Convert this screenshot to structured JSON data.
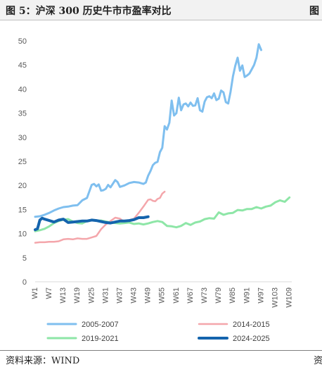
{
  "header": {
    "title": "图 5：沪深 300 历史牛市市盈率对比",
    "edge_glyph": "图"
  },
  "footer": {
    "source": "资料来源：WIND",
    "edge_glyph": "资"
  },
  "chart_data": {
    "type": "line",
    "title": "",
    "xlabel": "",
    "ylabel": "",
    "ylim": [
      0,
      50
    ],
    "yticks": [
      0,
      5,
      10,
      15,
      20,
      25,
      30,
      35,
      40,
      45,
      50
    ],
    "xlim": [
      1,
      110
    ],
    "xtick_values": [
      1,
      7,
      13,
      19,
      25,
      31,
      37,
      43,
      49,
      55,
      61,
      67,
      73,
      79,
      85,
      91,
      97,
      103,
      109
    ],
    "xtick_labels": [
      "W1",
      "W7",
      "W13",
      "W19",
      "W25",
      "W31",
      "W37",
      "W43",
      "W49",
      "W55",
      "W61",
      "W67",
      "W73",
      "W79",
      "W85",
      "W91",
      "W97",
      "W103",
      "W109"
    ],
    "grid": false,
    "legend_position": "bottom",
    "series": [
      {
        "name": "2005-2007",
        "color": "#7fbfef",
        "width": 3,
        "x": [
          1,
          3,
          5,
          7,
          9,
          11,
          13,
          15,
          17,
          19,
          21,
          23,
          25,
          26,
          27,
          28,
          29,
          30,
          31,
          32,
          33,
          35,
          36,
          37,
          39,
          41,
          43,
          45,
          47,
          48,
          49,
          50,
          51,
          52,
          53,
          54,
          55,
          56,
          57,
          58,
          59,
          60,
          61,
          62,
          63,
          64,
          65,
          66,
          67,
          68,
          69,
          70,
          71,
          72,
          73,
          74,
          75,
          76,
          77,
          78,
          79,
          80,
          81,
          82,
          83,
          84,
          85,
          86,
          87,
          88,
          89,
          90,
          91,
          92,
          93,
          94,
          95,
          96,
          97
        ],
        "y": [
          13.5,
          13.6,
          13.9,
          14.3,
          14.8,
          15.2,
          15.5,
          15.6,
          15.8,
          15.9,
          16.9,
          17.4,
          20.1,
          20.3,
          19.8,
          20.2,
          18.9,
          19.0,
          19.3,
          20.1,
          19.6,
          21.1,
          20.7,
          19.7,
          20.0,
          20.5,
          20.7,
          20.6,
          20.3,
          20.6,
          22.0,
          23.0,
          24.2,
          24.7,
          24.9,
          26.9,
          27.8,
          32.3,
          31.6,
          33.0,
          37.6,
          34.5,
          35.0,
          38.2,
          35.6,
          36.8,
          37.0,
          36.4,
          37.2,
          36.5,
          36.6,
          38.1,
          35.6,
          35.3,
          37.4,
          38.3,
          38.5,
          38.1,
          39.1,
          37.7,
          38.0,
          39.7,
          39.3,
          37.3,
          37.0,
          39.4,
          42.6,
          44.8,
          46.5,
          43.8,
          44.9,
          42.5,
          42.8,
          43.2,
          44.1,
          45.0,
          46.5,
          49.3,
          48.1
        ]
      },
      {
        "name": "2014-2015",
        "color": "#f4a6ab",
        "width": 2.5,
        "x": [
          1,
          3,
          5,
          7,
          9,
          11,
          13,
          15,
          17,
          19,
          21,
          23,
          25,
          27,
          29,
          31,
          33,
          35,
          37,
          39,
          41,
          43,
          45,
          47,
          49,
          50,
          51,
          52,
          53,
          54,
          55,
          56
        ],
        "y": [
          8.1,
          8.2,
          8.2,
          8.3,
          8.3,
          8.4,
          8.8,
          8.9,
          8.8,
          9.0,
          8.9,
          8.9,
          9.2,
          9.5,
          10.9,
          11.9,
          12.6,
          13.3,
          13.1,
          12.4,
          12.8,
          13.1,
          14.3,
          15.6,
          17.0,
          17.1,
          16.8,
          16.7,
          17.2,
          17.4,
          18.3,
          18.7
        ]
      },
      {
        "name": "2019-2021",
        "color": "#8ee6a7",
        "width": 3,
        "x": [
          1,
          3,
          5,
          7,
          9,
          11,
          13,
          15,
          17,
          19,
          21,
          23,
          25,
          27,
          29,
          31,
          33,
          35,
          37,
          39,
          41,
          43,
          45,
          47,
          49,
          51,
          53,
          55,
          57,
          59,
          61,
          63,
          65,
          67,
          69,
          71,
          73,
          75,
          77,
          79,
          81,
          83,
          85,
          87,
          89,
          91,
          93,
          95,
          97,
          99,
          101,
          103,
          105,
          107,
          109
        ],
        "y": [
          10.5,
          10.7,
          11.0,
          11.5,
          12.2,
          12.6,
          12.9,
          13.0,
          12.5,
          12.2,
          12.1,
          12.6,
          12.8,
          12.7,
          12.7,
          12.5,
          12.3,
          12.2,
          12.1,
          12.2,
          12.3,
          12.0,
          12.1,
          11.9,
          12.1,
          12.4,
          12.6,
          12.4,
          11.6,
          11.5,
          11.3,
          11.6,
          12.2,
          11.8,
          12.3,
          12.5,
          13.0,
          13.2,
          13.1,
          14.4,
          13.9,
          14.2,
          14.3,
          14.9,
          14.8,
          15.1,
          15.1,
          15.5,
          15.2,
          15.6,
          15.8,
          16.5,
          16.9,
          16.6,
          17.5
        ]
      },
      {
        "name": "2024-2025",
        "color": "#1464ad",
        "width": 4,
        "x": [
          1,
          2,
          3,
          4,
          5,
          7,
          9,
          11,
          13,
          15,
          17,
          19,
          21,
          23,
          25,
          27,
          29,
          31,
          33,
          35,
          37,
          39,
          41,
          43,
          45,
          47,
          49
        ],
        "y": [
          10.8,
          11.0,
          12.8,
          13.2,
          13.0,
          12.7,
          12.4,
          12.8,
          13.0,
          12.3,
          12.4,
          12.5,
          12.6,
          12.6,
          12.8,
          12.7,
          12.5,
          12.3,
          12.2,
          12.4,
          12.6,
          12.6,
          12.7,
          12.9,
          13.3,
          13.3,
          13.5
        ]
      }
    ]
  }
}
